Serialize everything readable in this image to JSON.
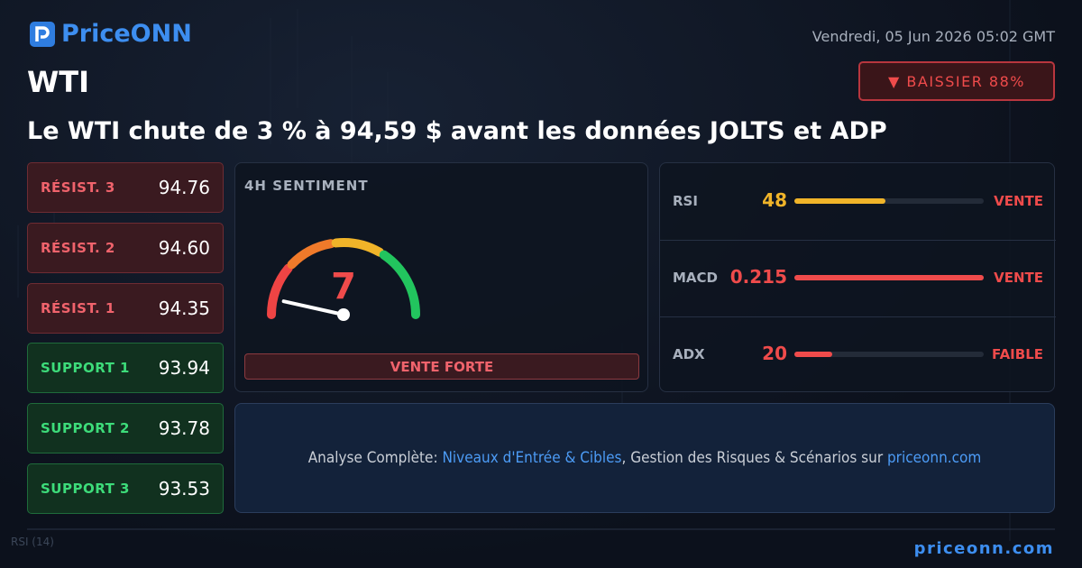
{
  "header": {
    "logo": "PriceONN",
    "date": "Vendredi, 05 Jun 2026 05:02 GMT",
    "asset": "WTI",
    "signal": "▼ BAISSIER 88%"
  },
  "headline": "Le WTI chute de 3 % à 94,59 $ avant les données JOLTS et ADP",
  "levels": [
    {
      "label": "RÉSIST. 3",
      "value": "94.76",
      "kind": "resistance"
    },
    {
      "label": "RÉSIST. 2",
      "value": "94.60",
      "kind": "resistance"
    },
    {
      "label": "RÉSIST. 1",
      "value": "94.35",
      "kind": "resistance"
    },
    {
      "label": "SUPPORT 1",
      "value": "93.94",
      "kind": "support"
    },
    {
      "label": "SUPPORT 2",
      "value": "93.78",
      "kind": "support"
    },
    {
      "label": "SUPPORT 3",
      "value": "93.53",
      "kind": "support"
    }
  ],
  "sentiment": {
    "title": "4H SENTIMENT",
    "score": 7,
    "verdict": "VENTE FORTE"
  },
  "indicators": [
    {
      "name": "RSI",
      "value": "48",
      "bar": 48,
      "status": "VENTE",
      "color": "#f0b429"
    },
    {
      "name": "MACD",
      "value": "0.215",
      "bar": 100,
      "status": "VENTE",
      "color": "#ef4b4b"
    },
    {
      "name": "ADX",
      "value": "20",
      "bar": 20,
      "status": "FAIBLE",
      "color": "#ef4b4b"
    }
  ],
  "promo": {
    "parts": [
      {
        "text": "Analyse Complète: ",
        "link": false
      },
      {
        "text": "Niveaux d'Entrée & Cibles",
        "link": true
      },
      {
        "text": ", Gestion des Risques & Scénarios sur ",
        "link": false
      },
      {
        "text": "priceonn.com",
        "link": true
      }
    ]
  },
  "background_label": "RSI (14)",
  "footer": "priceonn.com"
}
